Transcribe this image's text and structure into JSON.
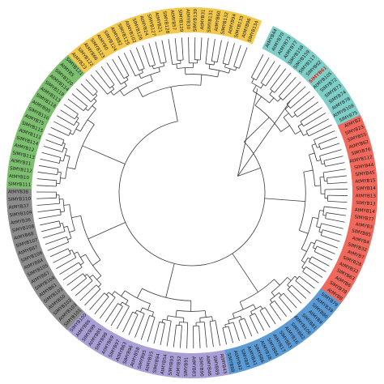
{
  "tree": {
    "highlight_color": "#e0251b",
    "branch_color": "#3a3a3a",
    "clades": [
      {
        "name": "cyan-clade",
        "color": "#7fcfc9"
      },
      {
        "name": "red-clade",
        "color": "#f0695c"
      },
      {
        "name": "blue-clade",
        "color": "#5b9bd5"
      },
      {
        "name": "purple-clade",
        "color": "#a99fd6"
      },
      {
        "name": "grey-clade",
        "color": "#8c8c8c"
      },
      {
        "name": "green-clade",
        "color": "#7cbf6e"
      },
      {
        "name": "yellow-clade",
        "color": "#f2c94c"
      }
    ],
    "leaves": [
      {
        "label": "AtMYB44",
        "clade": 0
      },
      {
        "label": "AtMYB70",
        "clade": 0
      },
      {
        "label": "AtMYB73",
        "clade": 0
      },
      {
        "label": "AtMYB77",
        "clade": 0
      },
      {
        "label": "SlMYB158",
        "clade": 0
      },
      {
        "label": "SlMYB159",
        "clade": 0
      },
      {
        "label": "SlMYB117",
        "clade": 0
      },
      {
        "label": "SlMYB92",
        "clade": 0
      },
      {
        "label": "SlMYB61",
        "clade": 0,
        "highlight": true
      },
      {
        "label": "AtMYB105",
        "clade": 0
      },
      {
        "label": "SlMYB72",
        "clade": 0
      },
      {
        "label": "SlMYB73",
        "clade": 0
      },
      {
        "label": "SlMYB74",
        "clade": 0
      },
      {
        "label": "AtMYB78",
        "clade": 0
      },
      {
        "label": "AtMYB108",
        "clade": 0
      },
      {
        "label": "SlMYB75",
        "clade": 0
      },
      {
        "label": "AtMYB2",
        "clade": 1
      },
      {
        "label": "SlMYB23",
        "clade": 1
      },
      {
        "label": "SlMYB55",
        "clade": 1
      },
      {
        "label": "AtMYB62",
        "clade": 1
      },
      {
        "label": "SlMYB76",
        "clade": 1
      },
      {
        "label": "AtMYB112",
        "clade": 1
      },
      {
        "label": "SlMYB44",
        "clade": 1
      },
      {
        "label": "SlMYB45",
        "clade": 1
      },
      {
        "label": "AtMYB15",
        "clade": 1
      },
      {
        "label": "SlMYB14",
        "clade": 1
      },
      {
        "label": "AtMYB13",
        "clade": 1
      },
      {
        "label": "SlMYB13",
        "clade": 1
      },
      {
        "label": "AtMYB14",
        "clade": 1
      },
      {
        "label": "SlMYB77",
        "clade": 1
      },
      {
        "label": "AtMYB3",
        "clade": 1
      },
      {
        "label": "SlMYB85",
        "clade": 1
      },
      {
        "label": "AtMYB4",
        "clade": 1
      },
      {
        "label": "SlMYB32",
        "clade": 1
      },
      {
        "label": "AtMYB7",
        "clade": 1
      },
      {
        "label": "SlMYB28",
        "clade": 1
      },
      {
        "label": "AtMYB32",
        "clade": 1
      },
      {
        "label": "SlMYB63",
        "clade": 1
      },
      {
        "label": "AtMYB6",
        "clade": 1
      },
      {
        "label": "SlMYB78",
        "clade": 1
      },
      {
        "label": "AtMYB8",
        "clade": 1
      },
      {
        "label": "SlMYB79",
        "clade": 2
      },
      {
        "label": "AtMYB39",
        "clade": 2
      },
      {
        "label": "SlMYB80",
        "clade": 2
      },
      {
        "label": "AtMYB9",
        "clade": 2
      },
      {
        "label": "SlMYB81",
        "clade": 2
      },
      {
        "label": "AtMYB106",
        "clade": 2
      },
      {
        "label": "SlMYB82",
        "clade": 2
      },
      {
        "label": "AtMYB16",
        "clade": 2
      },
      {
        "label": "SlMYB83",
        "clade": 2
      },
      {
        "label": "AtMYB17",
        "clade": 2
      },
      {
        "label": "SlMYB84",
        "clade": 2
      },
      {
        "label": "AtMYB38",
        "clade": 2
      },
      {
        "label": "SlMYB86",
        "clade": 2
      },
      {
        "label": "AtMYB41",
        "clade": 2
      },
      {
        "label": "SlMYB87",
        "clade": 2
      },
      {
        "label": "AtMYB42",
        "clade": 2
      },
      {
        "label": "SlMYB88",
        "clade": 2
      },
      {
        "label": "AtMYB43",
        "clade": 3
      },
      {
        "label": "SlMYB89",
        "clade": 3
      },
      {
        "label": "AtMYB46",
        "clade": 3
      },
      {
        "label": "SlMYB90",
        "clade": 3
      },
      {
        "label": "AtMYB83",
        "clade": 3
      },
      {
        "label": "SlMYB91",
        "clade": 3
      },
      {
        "label": "AtMYB52",
        "clade": 3
      },
      {
        "label": "SlMYB93",
        "clade": 3
      },
      {
        "label": "AtMYB54",
        "clade": 3
      },
      {
        "label": "SlMYB94",
        "clade": 3
      },
      {
        "label": "AtMYB55",
        "clade": 3
      },
      {
        "label": "SlMYB95",
        "clade": 3
      },
      {
        "label": "AtMYB58",
        "clade": 3
      },
      {
        "label": "SlMYB96",
        "clade": 3
      },
      {
        "label": "AtMYB63",
        "clade": 3
      },
      {
        "label": "SlMYB97",
        "clade": 3
      },
      {
        "label": "AtMYB69",
        "clade": 3
      },
      {
        "label": "SlMYB98",
        "clade": 3
      },
      {
        "label": "AtMYB85",
        "clade": 3
      },
      {
        "label": "SlMYB99",
        "clade": 3
      },
      {
        "label": "AtMYB86",
        "clade": 3
      },
      {
        "label": "SlMYB100",
        "clade": 3
      },
      {
        "label": "SlMYB101",
        "clade": 4
      },
      {
        "label": "AtMYB103",
        "clade": 4
      },
      {
        "label": "SlMYB102",
        "clade": 4
      },
      {
        "label": "AtMYB50",
        "clade": 4
      },
      {
        "label": "SlMYB103",
        "clade": 4
      },
      {
        "label": "AtMYB61",
        "clade": 4
      },
      {
        "label": "SlMYB104",
        "clade": 4
      },
      {
        "label": "AtMYB67",
        "clade": 4
      },
      {
        "label": "SlMYB105",
        "clade": 4
      },
      {
        "label": "AtMYB84",
        "clade": 4
      },
      {
        "label": "SlMYB106",
        "clade": 4
      },
      {
        "label": "AtMYB87",
        "clade": 4
      },
      {
        "label": "SlMYB107",
        "clade": 4
      },
      {
        "label": "AtMYB68",
        "clade": 4
      },
      {
        "label": "SlMYB108",
        "clade": 4
      },
      {
        "label": "AtMYB36",
        "clade": 4
      },
      {
        "label": "SlMYB109",
        "clade": 4
      },
      {
        "label": "AtMYB37",
        "clade": 4
      },
      {
        "label": "SlMYB110",
        "clade": 4
      },
      {
        "label": "AtMYB38",
        "clade": 4
      },
      {
        "label": "SlMYB111",
        "clade": 5
      },
      {
        "label": "AtMYB10",
        "clade": 5
      },
      {
        "label": "SlMYB112",
        "clade": 5
      },
      {
        "label": "AtMYB11",
        "clade": 5
      },
      {
        "label": "SlMYB113",
        "clade": 5
      },
      {
        "label": "AtMYB12",
        "clade": 5
      },
      {
        "label": "SlMYB114",
        "clade": 5
      },
      {
        "label": "AtMYB111",
        "clade": 5
      },
      {
        "label": "SlMYB115",
        "clade": 5
      },
      {
        "label": "AtMYB75",
        "clade": 5
      },
      {
        "label": "SlMYB116",
        "clade": 5
      },
      {
        "label": "AtMYB90",
        "clade": 5
      },
      {
        "label": "SlMYB118",
        "clade": 5
      },
      {
        "label": "AtMYB113",
        "clade": 5
      },
      {
        "label": "SlMYB119",
        "clade": 5
      },
      {
        "label": "AtMYB114",
        "clade": 5
      },
      {
        "label": "SlMYB120",
        "clade": 5
      },
      {
        "label": "AtMYB5",
        "clade": 5
      },
      {
        "label": "SlMYB121",
        "clade": 5
      },
      {
        "label": "AtMYB23",
        "clade": 6
      },
      {
        "label": "SlMYB122",
        "clade": 6
      },
      {
        "label": "AtMYB66",
        "clade": 6
      },
      {
        "label": "SlMYB123",
        "clade": 6
      },
      {
        "label": "AtMYB0",
        "clade": 6
      },
      {
        "label": "SlMYB124",
        "clade": 6
      },
      {
        "label": "AtMYB82",
        "clade": 6
      },
      {
        "label": "SlMYB125",
        "clade": 6
      },
      {
        "label": "AtMYB102",
        "clade": 6
      },
      {
        "label": "SlMYB126",
        "clade": 6
      },
      {
        "label": "AtMYB24",
        "clade": 6
      },
      {
        "label": "SlMYB127",
        "clade": 6
      },
      {
        "label": "AtMYB21",
        "clade": 6
      },
      {
        "label": "SlMYB128",
        "clade": 6
      },
      {
        "label": "AtMYB57",
        "clade": 6
      },
      {
        "label": "SlMYB129",
        "clade": 6
      },
      {
        "label": "AtMYB30",
        "clade": 6
      },
      {
        "label": "SlMYB130",
        "clade": 6
      },
      {
        "label": "AtMYB31",
        "clade": 6
      },
      {
        "label": "SlMYB131",
        "clade": 6
      },
      {
        "label": "AtMYB60",
        "clade": 6
      },
      {
        "label": "SlMYB132",
        "clade": 6
      },
      {
        "label": "AtMYB94",
        "clade": 6
      },
      {
        "label": "SlMYB133",
        "clade": 6
      },
      {
        "label": "AtMYB96",
        "clade": 6
      },
      {
        "label": "SlMYB134",
        "clade": 6
      }
    ]
  }
}
